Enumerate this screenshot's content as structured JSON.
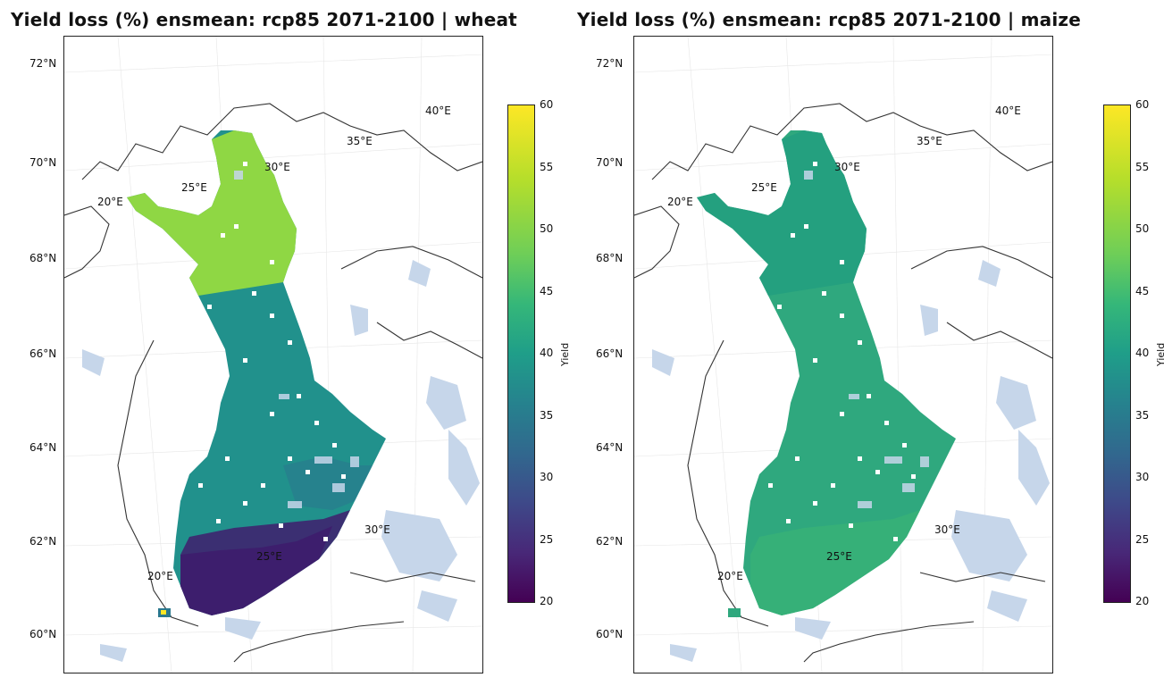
{
  "panels": [
    {
      "title": "Yield loss (%) ensmean: rcp85 2071-2100 | wheat",
      "crop": "wheat",
      "lat_labels": [
        "72°N",
        "70°N",
        "68°N",
        "66°N",
        "64°N",
        "62°N",
        "60°N"
      ],
      "lon_labels": [
        "20°E",
        "25°E",
        "30°E",
        "35°E",
        "40°E",
        "30°E",
        "25°E",
        "20°E"
      ],
      "colorbar": {
        "ticks": [
          "60",
          "55",
          "50",
          "45",
          "40",
          "35",
          "30",
          "25",
          "20"
        ],
        "label": "Yield",
        "min": 20,
        "max": 60
      },
      "regions": [
        {
          "name": "lapland-north",
          "value": 51
        },
        {
          "name": "central",
          "value": 42
        },
        {
          "name": "south-coast",
          "value": 27
        }
      ]
    },
    {
      "title": "Yield loss (%) ensmean: rcp85 2071-2100 | maize",
      "crop": "maize",
      "lat_labels": [
        "72°N",
        "70°N",
        "68°N",
        "66°N",
        "64°N",
        "62°N",
        "60°N"
      ],
      "lon_labels": [
        "20°E",
        "25°E",
        "30°E",
        "35°E",
        "40°E",
        "30°E",
        "25°E",
        "20°E"
      ],
      "colorbar": {
        "ticks": [
          "60",
          "55",
          "50",
          "45",
          "40",
          "35",
          "30",
          "25",
          "20"
        ],
        "label": "Yield",
        "min": 20,
        "max": 60
      },
      "regions": [
        {
          "name": "lapland-north",
          "value": 42
        },
        {
          "name": "central",
          "value": 44
        },
        {
          "name": "south-coast",
          "value": 45
        }
      ]
    }
  ],
  "colors": {
    "land_outline": "#333333",
    "water": "#c6d6ea",
    "wheat_north": "#8fd744",
    "wheat_central": "#21918c",
    "wheat_south": "#3b2f72",
    "maize_all": "#2fa87e"
  }
}
